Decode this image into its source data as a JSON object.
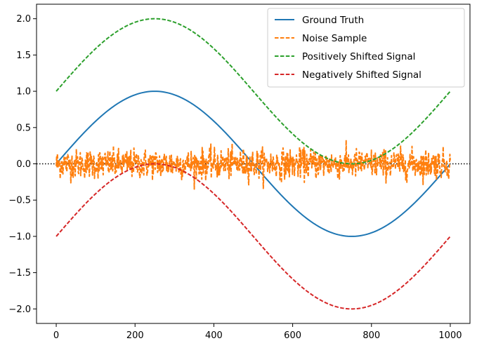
{
  "chart_data": {
    "type": "line",
    "title": "",
    "xlabel": "",
    "ylabel": "",
    "xlim": [
      -50,
      1050
    ],
    "ylim": [
      -2.2,
      2.2
    ],
    "x_ticks": [
      0,
      200,
      400,
      600,
      800,
      1000
    ],
    "x_tick_labels": [
      "0",
      "200",
      "400",
      "600",
      "800",
      "1000"
    ],
    "y_ticks": [
      2.0,
      1.5,
      1.0,
      0.5,
      0.0,
      -0.5,
      -1.0,
      -1.5,
      -2.0
    ],
    "y_tick_labels": [
      "2.0",
      "1.5",
      "1.0",
      "0.5",
      "0.0",
      "−0.5",
      "−1.0",
      "−1.5",
      "−2.0"
    ],
    "grid": false,
    "legend_position": "top-right",
    "reference_line": {
      "y": 0.0,
      "style": "dotted",
      "color": "#000000"
    },
    "series": [
      {
        "name": "Ground Truth",
        "style": "solid",
        "color": "#1f77b4",
        "function": "sin",
        "x": [
          0,
          50,
          100,
          150,
          200,
          250,
          300,
          350,
          400,
          450,
          500,
          550,
          600,
          650,
          700,
          750,
          800,
          850,
          900,
          950,
          1000
        ],
        "values": [
          0.0,
          0.309,
          0.588,
          0.809,
          0.951,
          1.0,
          0.951,
          0.809,
          0.588,
          0.309,
          0.0,
          -0.309,
          -0.588,
          -0.809,
          -0.951,
          -1.0,
          -0.951,
          -0.809,
          -0.588,
          -0.309,
          0.0
        ]
      },
      {
        "name": "Noise Sample",
        "style": "dashed",
        "color": "#ff7f0e",
        "function": "noise",
        "x_range": [
          0,
          1000
        ],
        "count": 1000,
        "mean": 0.0,
        "std": 0.1
      },
      {
        "name": "Positively Shifted Signal",
        "style": "dashed",
        "color": "#2ca02c",
        "function": "sin_plus_1",
        "x": [
          0,
          50,
          100,
          150,
          200,
          250,
          300,
          350,
          400,
          450,
          500,
          550,
          600,
          650,
          700,
          750,
          800,
          850,
          900,
          950,
          1000
        ],
        "values": [
          1.0,
          1.309,
          1.588,
          1.809,
          1.951,
          2.0,
          1.951,
          1.809,
          1.588,
          1.309,
          1.0,
          0.691,
          0.412,
          0.191,
          0.049,
          0.0,
          0.049,
          0.191,
          0.412,
          0.691,
          1.0
        ]
      },
      {
        "name": "Negatively Shifted Signal",
        "style": "dashed",
        "color": "#d62728",
        "function": "sin_minus_1",
        "x": [
          0,
          50,
          100,
          150,
          200,
          250,
          300,
          350,
          400,
          450,
          500,
          550,
          600,
          650,
          700,
          750,
          800,
          850,
          900,
          950,
          1000
        ],
        "values": [
          -1.0,
          -0.691,
          -0.412,
          -0.191,
          -0.049,
          0.0,
          -0.049,
          -0.191,
          -0.412,
          -0.691,
          -1.0,
          -1.309,
          -1.588,
          -1.809,
          -1.951,
          -2.0,
          -1.951,
          -1.809,
          -1.588,
          -1.309,
          -1.0
        ]
      }
    ]
  }
}
